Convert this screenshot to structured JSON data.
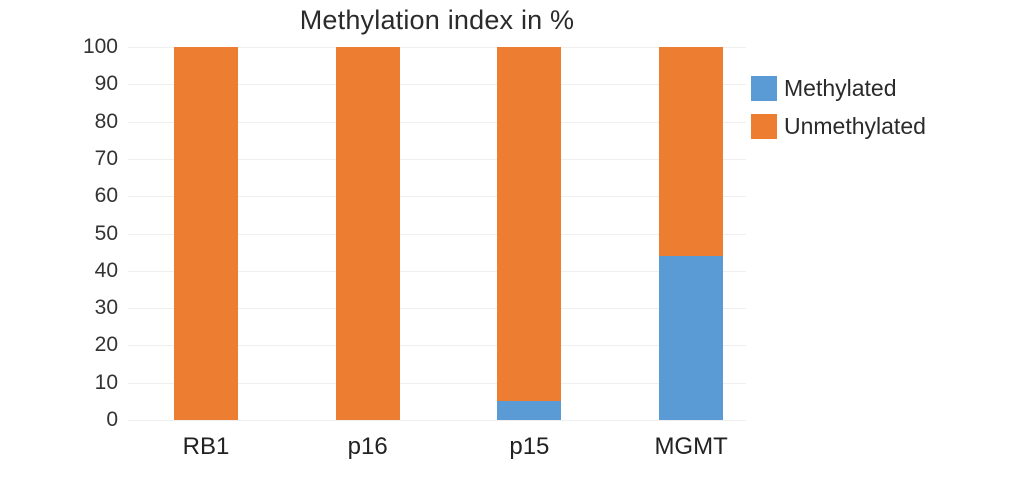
{
  "chart_data": {
    "type": "bar",
    "stacked": true,
    "title": "Methylation index in %",
    "categories": [
      "RB1",
      "p16",
      "p15",
      "MGMT"
    ],
    "series": [
      {
        "name": "Methylated",
        "color": "#5B9BD5",
        "values": [
          0,
          0,
          5,
          44
        ]
      },
      {
        "name": "Unmethylated",
        "color": "#ED7D31",
        "values": [
          100,
          100,
          95,
          56
        ]
      }
    ],
    "xlabel": "",
    "ylabel": "",
    "ylim": [
      0,
      100
    ],
    "yticks": [
      0,
      10,
      20,
      30,
      40,
      50,
      60,
      70,
      80,
      90,
      100
    ],
    "grid": true,
    "legend_position": "top-right",
    "background_color": "#ffffff",
    "gridline_color": "#efefef",
    "title_color": "#2b2b2b",
    "tick_label_color": "#333333"
  }
}
